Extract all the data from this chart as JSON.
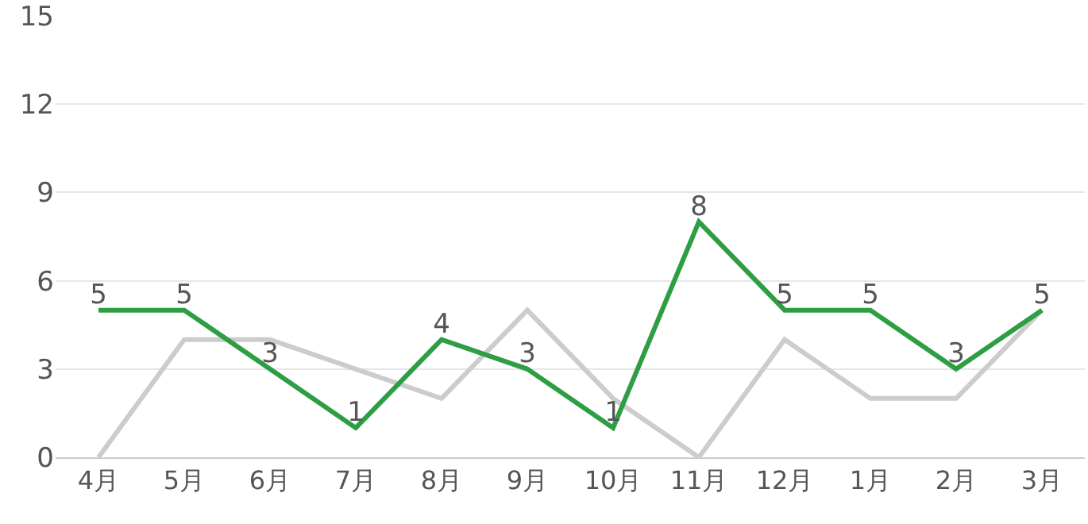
{
  "chart_data": {
    "type": "line",
    "categories": [
      "4月",
      "5月",
      "6月",
      "7月",
      "8月",
      "9月",
      "10月",
      "11月",
      "12月",
      "1月",
      "2月",
      "3月"
    ],
    "series": [
      {
        "color": "#cccccc",
        "values": [
          0,
          4,
          4,
          3,
          2,
          5,
          2,
          0,
          4,
          2,
          2,
          5
        ]
      },
      {
        "color": "#2e9e44",
        "values": [
          5,
          5,
          3,
          1,
          4,
          3,
          1,
          8,
          5,
          5,
          3,
          5
        ],
        "value_labels": [
          "5",
          "5",
          "3",
          "1",
          "4",
          "3",
          "1",
          "8",
          "5",
          "5",
          "3",
          "5"
        ]
      }
    ],
    "ylim": [
      0,
      15
    ],
    "yticks": [
      0,
      3,
      6,
      9,
      12,
      15
    ],
    "grid": "y",
    "marker": "none",
    "line_style": "solid"
  }
}
